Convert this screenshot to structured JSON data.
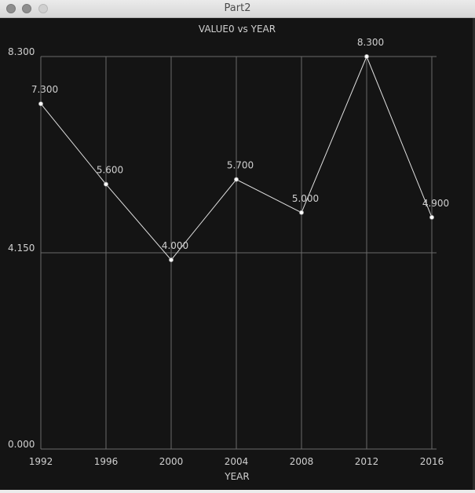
{
  "window": {
    "title": "Part2"
  },
  "chart_data": {
    "type": "line",
    "title": "VALUE0 vs YEAR",
    "xlabel": "YEAR",
    "ylabel": "",
    "x": [
      1992,
      1996,
      2000,
      2004,
      2008,
      2012,
      2016
    ],
    "series": [
      {
        "values": [
          7.3,
          5.6,
          4.0,
          5.7,
          5.0,
          8.3,
          4.9
        ]
      }
    ],
    "data_labels": [
      "7.300",
      "5.600",
      "4.000",
      "5.700",
      "5.000",
      "8.300",
      "4.900"
    ],
    "xticks": [
      "1992",
      "1996",
      "2000",
      "2004",
      "2008",
      "2012",
      "2016"
    ],
    "yticks": [
      {
        "value": 0,
        "label": "0.000"
      },
      {
        "value": 4.15,
        "label": "4.150"
      },
      {
        "value": 8.3,
        "label": "8.300"
      }
    ],
    "xlim": [
      1992,
      2016
    ],
    "ylim": [
      0,
      8.3
    ],
    "grid": true,
    "colors": {
      "background": "#141414",
      "line": "#e0e0e0",
      "grid": "#6a6a6a",
      "text": "#d0d0d0"
    }
  }
}
